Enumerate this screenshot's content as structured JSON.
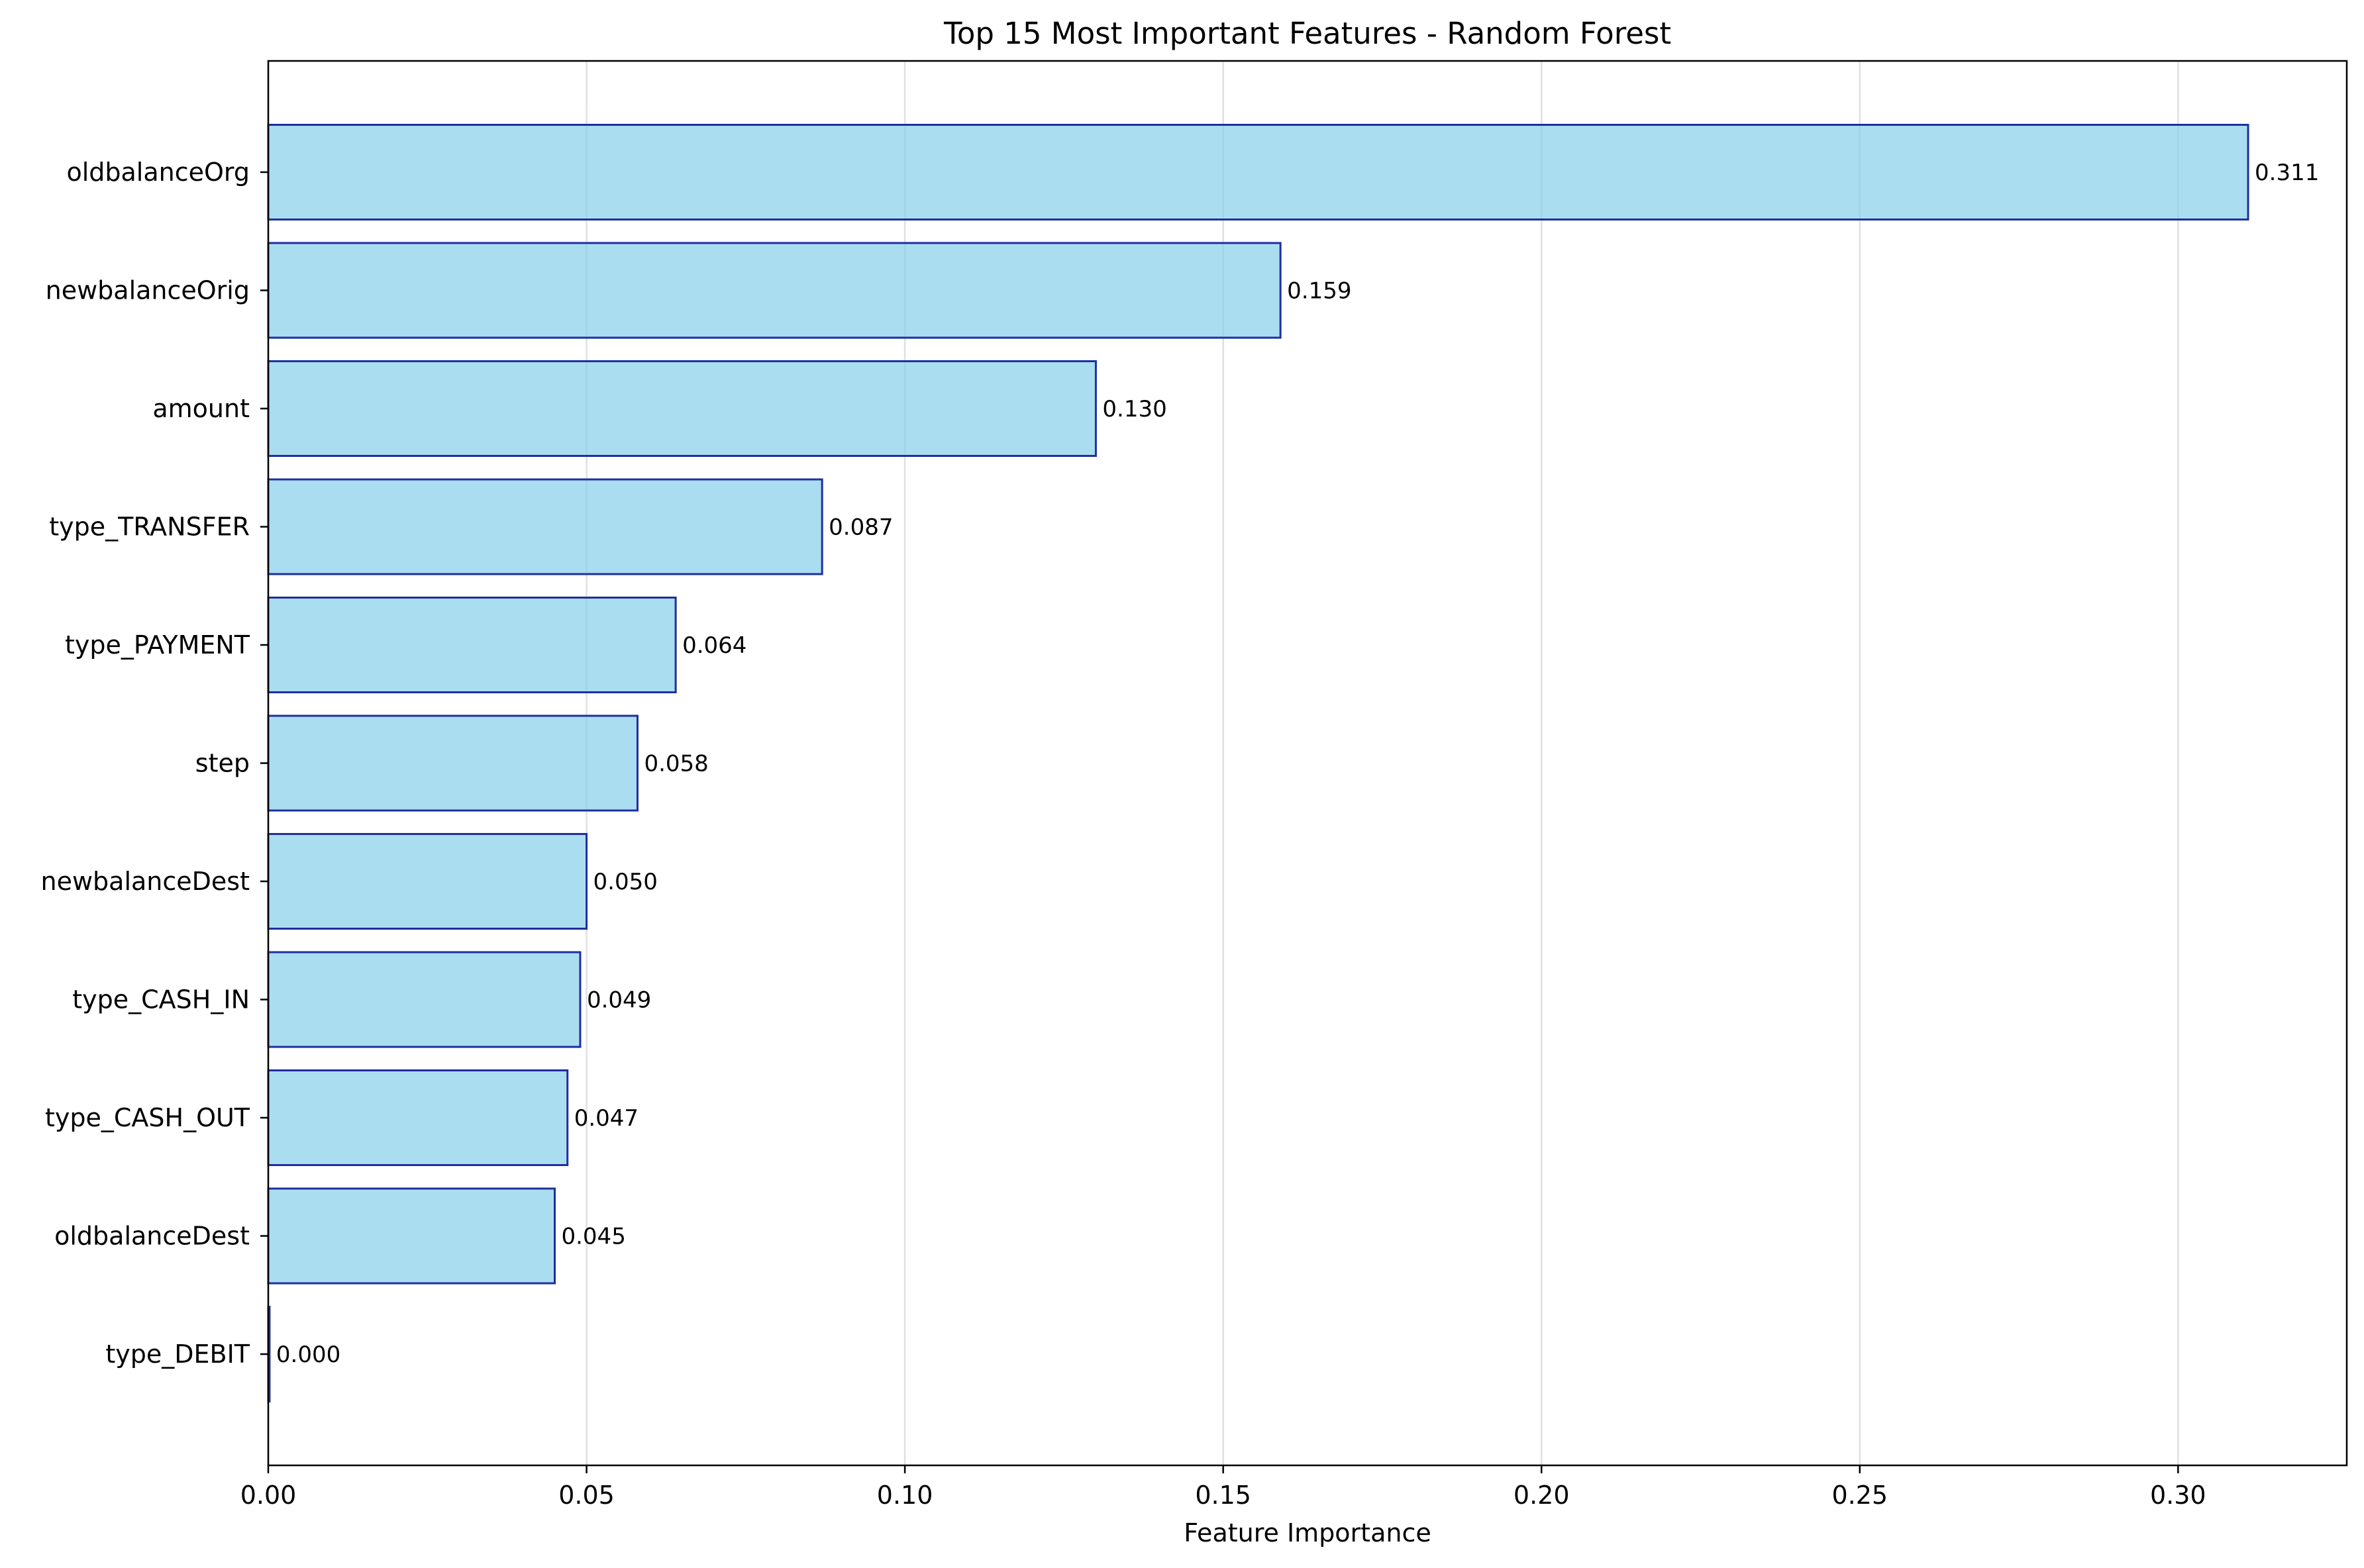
{
  "chart_data": {
    "type": "bar",
    "orientation": "horizontal",
    "title": "Top 15 Most Important Features - Random Forest",
    "xlabel": "Feature Importance",
    "ylabel": "",
    "xlim": [
      0,
      0.3265
    ],
    "xticks": [
      0.0,
      0.05,
      0.1,
      0.15,
      0.2,
      0.25,
      0.3
    ],
    "xtick_labels": [
      "0.00",
      "0.05",
      "0.10",
      "0.15",
      "0.20",
      "0.25",
      "0.30"
    ],
    "grid": "vertical",
    "categories": [
      "oldbalanceOrg",
      "newbalanceOrig",
      "amount",
      "type_TRANSFER",
      "type_PAYMENT",
      "step",
      "newbalanceDest",
      "type_CASH_IN",
      "type_CASH_OUT",
      "oldbalanceDest",
      "type_DEBIT"
    ],
    "values": [
      0.311,
      0.159,
      0.13,
      0.087,
      0.064,
      0.058,
      0.05,
      0.049,
      0.047,
      0.045,
      0.0002
    ],
    "value_labels": [
      "0.311",
      "0.159",
      "0.130",
      "0.087",
      "0.064",
      "0.058",
      "0.050",
      "0.049",
      "0.047",
      "0.045",
      "0.000"
    ],
    "colors": {
      "bar_fill": "#87CEEB",
      "bar_edge": "#1F2F9E",
      "grid": "#e0e0e0",
      "axis": "#000000"
    }
  }
}
